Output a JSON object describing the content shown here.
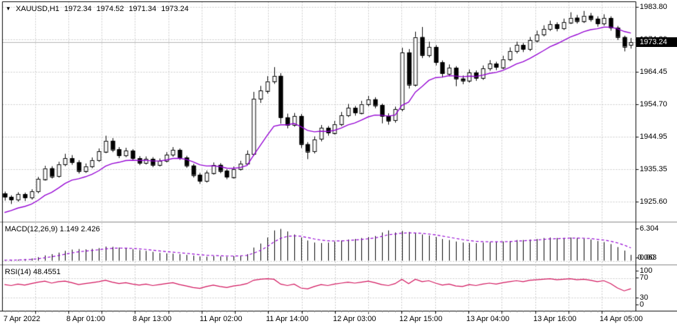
{
  "title": {
    "symbol": "XAUUSD,H1",
    "open": "1972.34",
    "high": "1974.52",
    "low": "1971.34",
    "close": "1973.24"
  },
  "colors": {
    "background": "#ffffff",
    "grid": "#c9c9c9",
    "border": "#000000",
    "candle_up_fill": "#ffffff",
    "candle_down_fill": "#000000",
    "candle_outline": "#000000",
    "ma_line": "#9400d3",
    "macd_histogram": "#000000",
    "macd_signal": "#9400d3",
    "rsi_line": "#d1105a",
    "price_tag_bg": "#000000",
    "price_tag_text": "#ffffff",
    "current_price_line": "#b3b3b3"
  },
  "chart_data": {
    "type": "candlestick",
    "symbol": "XAUUSD",
    "timeframe": "H1",
    "current": {
      "open": 1972.34,
      "high": 1974.52,
      "low": 1971.34,
      "close": 1973.24
    },
    "x_labels": [
      "7 Apr 2022",
      "8 Apr 01:00",
      "8 Apr 13:00",
      "11 Apr 02:00",
      "11 Apr 14:00",
      "12 Apr 03:00",
      "12 Apr 15:00",
      "13 Apr 04:00",
      "13 Apr 16:00",
      "14 Apr 05:00"
    ],
    "price_axis": {
      "labels": [
        "1983.80",
        "1974.20",
        "1964.45",
        "1954.70",
        "1944.95",
        "1935.35",
        "1925.60"
      ],
      "label_values": [
        1983.8,
        1974.2,
        1964.45,
        1954.7,
        1944.95,
        1935.35,
        1925.6
      ],
      "current_label": "1973.24",
      "current_value": 1973.24
    },
    "candles": [
      [
        1928.0,
        1928.6,
        1925.9,
        1927.0
      ],
      [
        1927.0,
        1927.5,
        1924.9,
        1926.2
      ],
      [
        1926.2,
        1928.4,
        1925.6,
        1927.8
      ],
      [
        1927.8,
        1928.3,
        1925.8,
        1926.8
      ],
      [
        1926.8,
        1929.3,
        1926.2,
        1928.6
      ],
      [
        1928.6,
        1933.0,
        1928.1,
        1932.4
      ],
      [
        1932.4,
        1936.3,
        1931.9,
        1935.6
      ],
      [
        1935.6,
        1936.2,
        1932.5,
        1933.2
      ],
      [
        1933.2,
        1937.5,
        1932.8,
        1936.8
      ],
      [
        1936.8,
        1939.9,
        1936.2,
        1938.6
      ],
      [
        1938.6,
        1939.5,
        1936.6,
        1937.4
      ],
      [
        1937.4,
        1938.0,
        1934.0,
        1934.8
      ],
      [
        1934.8,
        1937.0,
        1934.2,
        1936.2
      ],
      [
        1936.2,
        1938.8,
        1935.6,
        1938.0
      ],
      [
        1938.0,
        1941.5,
        1937.5,
        1940.6
      ],
      [
        1940.6,
        1945.3,
        1940.1,
        1943.8
      ],
      [
        1943.8,
        1944.6,
        1940.4,
        1941.2
      ],
      [
        1941.2,
        1941.9,
        1938.6,
        1939.4
      ],
      [
        1939.4,
        1941.7,
        1938.9,
        1940.8
      ],
      [
        1940.8,
        1941.3,
        1937.9,
        1938.6
      ],
      [
        1938.6,
        1939.2,
        1936.5,
        1937.2
      ],
      [
        1937.2,
        1939.1,
        1936.7,
        1938.4
      ],
      [
        1938.4,
        1938.9,
        1935.9,
        1936.6
      ],
      [
        1936.6,
        1938.5,
        1936.1,
        1937.8
      ],
      [
        1937.8,
        1940.4,
        1937.3,
        1939.6
      ],
      [
        1939.6,
        1941.9,
        1939.0,
        1941.0
      ],
      [
        1941.0,
        1941.5,
        1938.1,
        1938.8
      ],
      [
        1938.8,
        1939.3,
        1935.7,
        1936.4
      ],
      [
        1936.4,
        1936.9,
        1932.8,
        1933.6
      ],
      [
        1933.6,
        1934.2,
        1930.9,
        1931.8
      ],
      [
        1931.8,
        1934.9,
        1931.3,
        1934.2
      ],
      [
        1934.2,
        1937.3,
        1933.7,
        1936.6
      ],
      [
        1936.6,
        1937.1,
        1934.1,
        1934.8
      ],
      [
        1934.8,
        1935.3,
        1932.3,
        1933.0
      ],
      [
        1933.0,
        1936.1,
        1932.5,
        1935.4
      ],
      [
        1935.4,
        1937.8,
        1934.9,
        1937.0
      ],
      [
        1937.0,
        1940.9,
        1936.5,
        1939.8
      ],
      [
        1939.8,
        1958.4,
        1939.3,
        1956.4
      ],
      [
        1956.4,
        1960.2,
        1955.1,
        1958.8
      ],
      [
        1958.8,
        1963.1,
        1957.9,
        1961.6
      ],
      [
        1961.6,
        1965.8,
        1960.8,
        1963.2
      ],
      [
        1963.2,
        1964.0,
        1948.9,
        1950.8
      ],
      [
        1950.8,
        1951.9,
        1947.5,
        1948.6
      ],
      [
        1948.6,
        1952.1,
        1948.0,
        1951.2
      ],
      [
        1951.2,
        1951.8,
        1941.6,
        1942.8
      ],
      [
        1942.8,
        1943.4,
        1938.3,
        1940.6
      ],
      [
        1940.6,
        1945.1,
        1940.0,
        1944.2
      ],
      [
        1944.2,
        1948.5,
        1943.6,
        1947.6
      ],
      [
        1947.6,
        1948.2,
        1945.3,
        1946.2
      ],
      [
        1946.2,
        1949.7,
        1945.7,
        1948.8
      ],
      [
        1948.8,
        1952.4,
        1948.2,
        1951.4
      ],
      [
        1951.4,
        1954.8,
        1950.9,
        1953.6
      ],
      [
        1953.6,
        1954.2,
        1951.3,
        1952.2
      ],
      [
        1952.2,
        1955.7,
        1951.7,
        1954.8
      ],
      [
        1954.8,
        1957.2,
        1954.1,
        1956.2
      ],
      [
        1956.2,
        1956.8,
        1953.5,
        1954.4
      ],
      [
        1954.4,
        1954.9,
        1949.0,
        1951.2
      ],
      [
        1951.2,
        1952.0,
        1948.6,
        1949.8
      ],
      [
        1949.8,
        1954.0,
        1949.2,
        1953.2
      ],
      [
        1953.2,
        1971.6,
        1952.6,
        1970.2
      ],
      [
        1970.2,
        1971.2,
        1959.4,
        1960.6
      ],
      [
        1960.6,
        1976.4,
        1960.0,
        1974.8
      ],
      [
        1974.8,
        1977.8,
        1968.5,
        1969.4
      ],
      [
        1969.4,
        1973.4,
        1968.7,
        1971.8
      ],
      [
        1971.8,
        1972.4,
        1966.3,
        1967.2
      ],
      [
        1967.2,
        1967.8,
        1962.7,
        1963.8
      ],
      [
        1963.8,
        1966.6,
        1963.1,
        1965.6
      ],
      [
        1965.6,
        1966.1,
        1960.1,
        1962.4
      ],
      [
        1962.4,
        1963.3,
        1960.7,
        1961.8
      ],
      [
        1961.8,
        1965.1,
        1961.2,
        1964.2
      ],
      [
        1964.2,
        1964.8,
        1961.7,
        1962.6
      ],
      [
        1962.6,
        1966.3,
        1962.0,
        1965.4
      ],
      [
        1965.4,
        1967.9,
        1964.7,
        1966.8
      ],
      [
        1966.8,
        1967.4,
        1964.9,
        1965.8
      ],
      [
        1965.8,
        1969.2,
        1965.2,
        1968.2
      ],
      [
        1968.2,
        1971.7,
        1967.6,
        1970.6
      ],
      [
        1970.6,
        1973.4,
        1969.9,
        1972.4
      ],
      [
        1972.4,
        1973.0,
        1970.3,
        1971.2
      ],
      [
        1971.2,
        1974.8,
        1970.6,
        1973.8
      ],
      [
        1973.8,
        1976.7,
        1973.2,
        1975.6
      ],
      [
        1975.6,
        1978.3,
        1975.0,
        1977.2
      ],
      [
        1977.2,
        1979.7,
        1976.6,
        1978.6
      ],
      [
        1978.6,
        1979.2,
        1976.5,
        1977.4
      ],
      [
        1977.4,
        1980.3,
        1976.9,
        1979.2
      ],
      [
        1979.2,
        1982.2,
        1978.7,
        1980.6
      ],
      [
        1980.6,
        1981.4,
        1978.8,
        1979.6
      ],
      [
        1979.6,
        1982.6,
        1979.0,
        1981.2
      ],
      [
        1981.2,
        1982.0,
        1979.4,
        1980.2
      ],
      [
        1980.2,
        1981.0,
        1977.9,
        1978.8
      ],
      [
        1978.8,
        1981.6,
        1978.2,
        1980.4
      ],
      [
        1980.4,
        1981.0,
        1976.7,
        1977.6
      ],
      [
        1977.6,
        1978.1,
        1973.9,
        1974.8
      ],
      [
        1974.8,
        1975.2,
        1970.5,
        1972.0
      ],
      [
        1972.34,
        1974.52,
        1971.34,
        1973.24
      ]
    ],
    "indicators": {
      "macd": {
        "label": "MACD(12,26,9)",
        "main_value": "1.149",
        "signal_value": "2.426",
        "axis_max_label": "6.304",
        "axis_zero_label": "0.00",
        "axis_overlap_label": "0.063",
        "axis_max": 6.304,
        "histogram": [
          0.1,
          0.15,
          0.2,
          0.3,
          0.45,
          0.7,
          1.05,
          1.3,
          1.6,
          1.95,
          2.2,
          2.3,
          2.25,
          2.35,
          2.5,
          2.8,
          2.75,
          2.6,
          2.45,
          2.3,
          2.1,
          1.95,
          1.75,
          1.55,
          1.45,
          1.4,
          1.3,
          1.15,
          1.0,
          0.85,
          0.8,
          0.9,
          0.85,
          0.8,
          0.9,
          1.05,
          1.3,
          2.6,
          3.4,
          4.6,
          6.0,
          6.304,
          5.8,
          5.2,
          4.6,
          4.0,
          3.6,
          3.5,
          3.6,
          3.8,
          4.0,
          4.2,
          4.3,
          4.5,
          4.7,
          4.9,
          5.6,
          6.0,
          5.6,
          5.9,
          5.7,
          5.4,
          5.2,
          5.0,
          4.7,
          4.3,
          4.1,
          3.8,
          3.6,
          3.5,
          3.5,
          3.6,
          3.7,
          3.7,
          3.8,
          3.9,
          4.1,
          4.1,
          4.2,
          4.3,
          4.5,
          4.6,
          4.5,
          4.5,
          4.6,
          4.5,
          4.4,
          4.2,
          3.9,
          3.7,
          3.3,
          2.7,
          2.0,
          1.149
        ]
      },
      "rsi": {
        "label": "RSI(14)",
        "value": "48.4551",
        "axis_labels": [
          "100",
          "70",
          "30",
          "0"
        ],
        "levels": [
          70,
          30
        ],
        "series": [
          57,
          55,
          58,
          56,
          59,
          62,
          64,
          60,
          63,
          64,
          61,
          57,
          59,
          61,
          63,
          66,
          62,
          59,
          61,
          58,
          56,
          58,
          55,
          57,
          59,
          61,
          57,
          54,
          51,
          49,
          53,
          56,
          53,
          51,
          54,
          56,
          59,
          66,
          68,
          69,
          68,
          58,
          55,
          58,
          50,
          48,
          53,
          57,
          55,
          58,
          60,
          62,
          60,
          62,
          64,
          61,
          57,
          55,
          59,
          68,
          59,
          68,
          63,
          65,
          60,
          56,
          58,
          54,
          53,
          57,
          55,
          58,
          60,
          58,
          61,
          63,
          65,
          63,
          66,
          67,
          68,
          69,
          67,
          68,
          69,
          67,
          68,
          66,
          63,
          65,
          59,
          50,
          44,
          48.46
        ]
      }
    }
  }
}
